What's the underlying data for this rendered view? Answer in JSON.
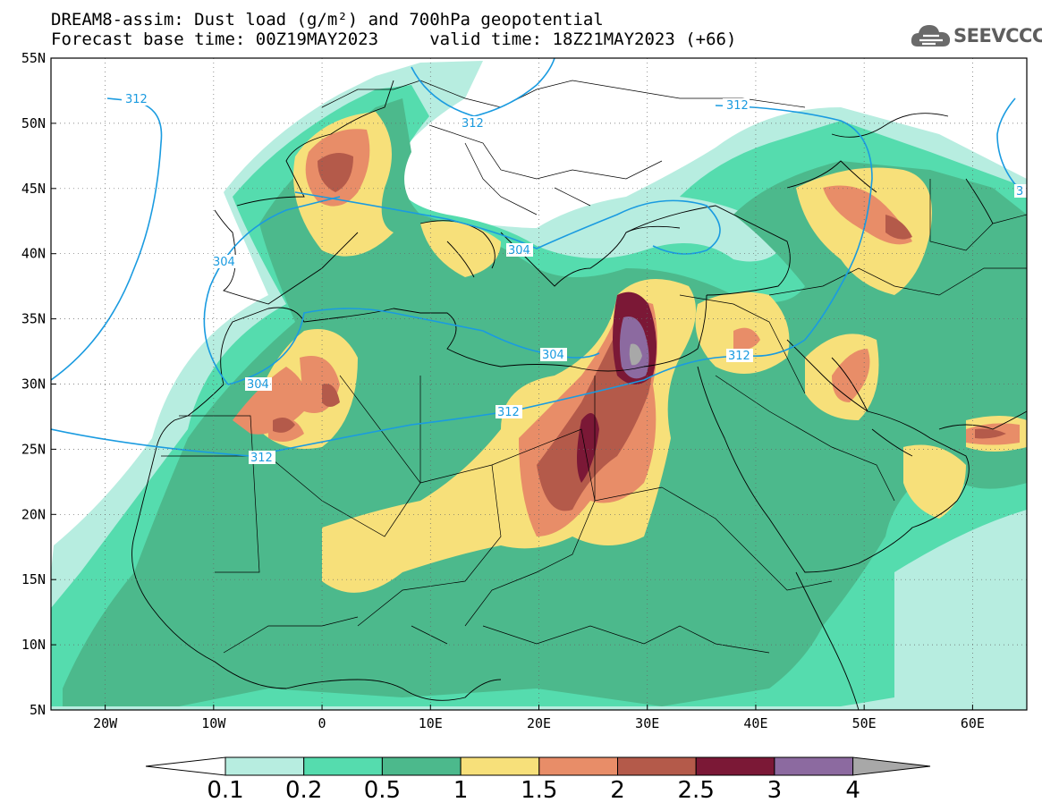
{
  "header": {
    "title_line1": "DREAM8-assim: Dust load (g/m²) and 700hPa geopotential",
    "title_line2": "Forecast base time: 00Z19MAY2023     valid time: 18Z21MAY2023 (+66)"
  },
  "logo": {
    "text": "SEEVCCC",
    "icon": "cloud-logo-icon"
  },
  "map": {
    "lon_range": [
      -25,
      65
    ],
    "lat_range": [
      5,
      55
    ],
    "lat_ticks": [
      "55N",
      "50N",
      "45N",
      "40N",
      "35N",
      "30N",
      "25N",
      "20N",
      "15N",
      "10N",
      "5N"
    ],
    "lon_ticks": [
      "20W",
      "10W",
      "0",
      "10E",
      "20E",
      "30E",
      "40E",
      "50E",
      "60E"
    ],
    "geopotential_contours": [
      {
        "value": "312"
      },
      {
        "value": "312"
      },
      {
        "value": "312"
      },
      {
        "value": "312"
      },
      {
        "value": "304"
      },
      {
        "value": "304"
      },
      {
        "value": "304"
      },
      {
        "value": "304"
      },
      {
        "value": "312"
      },
      {
        "value": "312"
      },
      {
        "value": "3"
      }
    ]
  },
  "colorbar": {
    "boundaries": [
      "0.1",
      "0.2",
      "0.5",
      "1",
      "1.5",
      "2",
      "2.5",
      "3",
      "4"
    ],
    "colors": [
      "#b7ede0",
      "#55dcae",
      "#4cb98c",
      "#f7e07a",
      "#e88d68",
      "#b45a4a",
      "#7b1836",
      "#8c6aa0",
      "#a8a8a8"
    ],
    "under_color": "#ffffff"
  },
  "colors": {
    "contour_line": "#1a9be0",
    "coastline": "#000000"
  }
}
